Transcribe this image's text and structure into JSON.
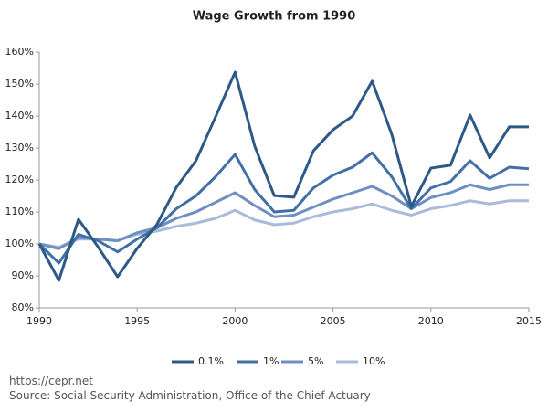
{
  "chart_data": {
    "type": "line",
    "title": "Wage Growth from 1990",
    "x": [
      1990,
      1991,
      1992,
      1993,
      1994,
      1995,
      1996,
      1997,
      1998,
      1999,
      2000,
      2001,
      2002,
      2003,
      2004,
      2005,
      2006,
      2007,
      2008,
      2009,
      2010,
      2011,
      2012,
      2013,
      2014,
      2015
    ],
    "series": [
      {
        "name": "0.1%",
        "color": "#2d5986",
        "values": [
          100,
          88.6,
          107.7,
          99.1,
          89.7,
          98.6,
          106,
          117.7,
          126,
          139.7,
          153.7,
          130.6,
          115.1,
          114.6,
          129.1,
          135.7,
          140,
          150.9,
          134.3,
          111.7,
          123.7,
          124.6,
          140.3,
          126.9,
          136.6,
          136.6
        ]
      },
      {
        "name": "1%",
        "color": "#4270a6",
        "values": [
          100,
          94,
          103,
          101,
          97.5,
          101.5,
          105,
          111,
          115,
          121,
          128,
          117,
          110,
          110.5,
          117.5,
          121.5,
          124,
          128.5,
          121,
          111,
          117.5,
          119.5,
          126,
          120.5,
          124,
          123.5
        ]
      },
      {
        "name": "5%",
        "color": "#6f8fc2",
        "values": [
          100,
          98.5,
          102,
          101.5,
          101,
          103.5,
          105,
          108,
          110,
          113,
          116,
          112,
          108.5,
          109,
          111.5,
          114,
          116,
          118,
          115,
          111,
          114.5,
          116,
          118.5,
          117,
          118.5,
          118.5
        ]
      },
      {
        "name": "10%",
        "color": "#a8bcda",
        "values": [
          100,
          99,
          101.5,
          101.5,
          101,
          103,
          104,
          105.5,
          106.5,
          108,
          110.5,
          107.5,
          106,
          106.5,
          108.5,
          110,
          111,
          112.5,
          110.5,
          109,
          111,
          112,
          113.5,
          112.5,
          113.5,
          113.5
        ]
      }
    ],
    "xlim": [
      1990,
      2015
    ],
    "xticks": [
      1990,
      1995,
      2000,
      2005,
      2010,
      2015
    ],
    "ylim": [
      80,
      160
    ],
    "yticks": [
      {
        "value": 80,
        "label": "80%"
      },
      {
        "value": 90,
        "label": "90%"
      },
      {
        "value": 100,
        "label": "100%"
      },
      {
        "value": 110,
        "label": "110%"
      },
      {
        "value": 120,
        "label": "120%"
      },
      {
        "value": 130,
        "label": "130%"
      },
      {
        "value": 140,
        "label": "140%"
      },
      {
        "value": 150,
        "label": "150%"
      },
      {
        "value": 160,
        "label": "160%"
      }
    ],
    "grid": false,
    "legend": "bottom",
    "source_url": "https://cepr.net",
    "source": "Source: Social Security Administration, Office of the Chief Actuary"
  }
}
